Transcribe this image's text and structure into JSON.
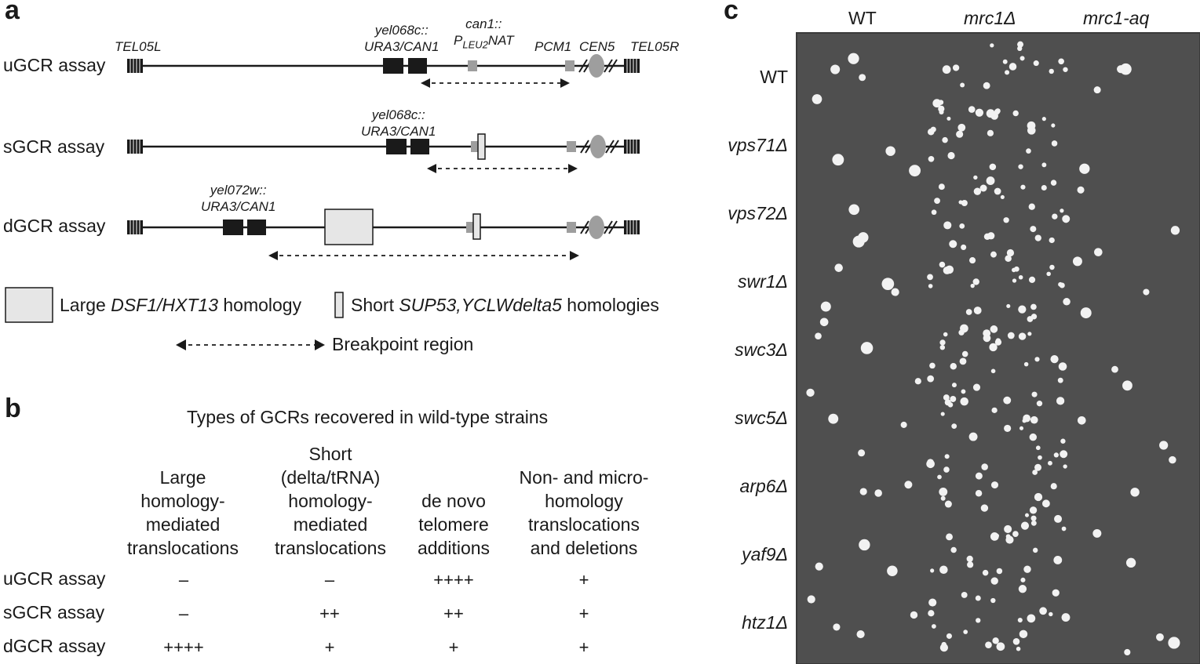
{
  "panel_a": {
    "letter": "a",
    "assays": [
      {
        "label": "uGCR assay"
      },
      {
        "label": "sGCR assay"
      },
      {
        "label": "dGCR assay"
      }
    ],
    "genes": {
      "tel05l": "TEL05L",
      "yel068c_u_1": "yel068c::",
      "yel068c_u_2": "URA3/CAN1",
      "can1_1": "can1::",
      "can1_2": "PLEU2NAT",
      "pcm1": "PCM1",
      "cen5": "CEN5",
      "tel05r": "TEL05R",
      "yel068c_s_1": "yel068c::",
      "yel068c_s_2": "URA3/CAN1",
      "yel072w_1": "yel072w::",
      "yel072w_2": "URA3/CAN1"
    },
    "legend": {
      "large_prefix": "Large ",
      "large_gene": "DSF1/HXT13",
      "large_suffix": " homology",
      "short_prefix": "Short ",
      "short_gene": "SUP53,YCLWdelta5",
      "short_suffix": " homologies",
      "breakpoint": "Breakpoint region"
    }
  },
  "panel_b": {
    "letter": "b",
    "title": "Types of GCRs recovered in wild-type strains",
    "columns": [
      {
        "lines": [
          "Large",
          "homology-",
          "mediated",
          "translocations"
        ]
      },
      {
        "lines": [
          "Short",
          "(delta/tRNA)",
          "homology-",
          "mediated",
          "translocations"
        ]
      },
      {
        "lines": [
          "de novo",
          "telomere",
          "additions"
        ]
      },
      {
        "lines": [
          "Non- and micro-",
          "homology",
          "translocations",
          "and deletions"
        ]
      }
    ],
    "rows": [
      {
        "label": "uGCR assay",
        "cells": [
          "–",
          "–",
          "++++",
          "+"
        ]
      },
      {
        "label": "sGCR assay",
        "cells": [
          "–",
          "++",
          "++",
          "+"
        ]
      },
      {
        "label": "dGCR assay",
        "cells": [
          "++++",
          "+",
          "+",
          "+"
        ]
      }
    ]
  },
  "panel_c": {
    "letter": "c",
    "columns": [
      "WT",
      "mrc1Δ",
      "mrc1-aq"
    ],
    "strains": [
      "WT",
      "vps71Δ",
      "vps72Δ",
      "swr1Δ",
      "swc3Δ",
      "swc5Δ",
      "arp6Δ",
      "yaf9Δ",
      "htz1Δ"
    ],
    "colony_density": [
      [
        0.15,
        0.6,
        0.1
      ],
      [
        0.1,
        0.95,
        0.05
      ],
      [
        0.1,
        0.95,
        0.08
      ],
      [
        0.15,
        0.95,
        0.12
      ],
      [
        0.1,
        0.95,
        0.08
      ],
      [
        0.15,
        0.9,
        0.1
      ],
      [
        0.15,
        0.9,
        0.08
      ],
      [
        0.1,
        0.85,
        0.08
      ],
      [
        0.15,
        0.85,
        0.12
      ]
    ]
  },
  "colors": {
    "gene_dark": "#1a1a1a",
    "gene_grey": "#9e9e9e",
    "homology_fill": "#e6e6e6",
    "plate_bg": "#4f4f4f",
    "colony": "#f2f2f2"
  }
}
